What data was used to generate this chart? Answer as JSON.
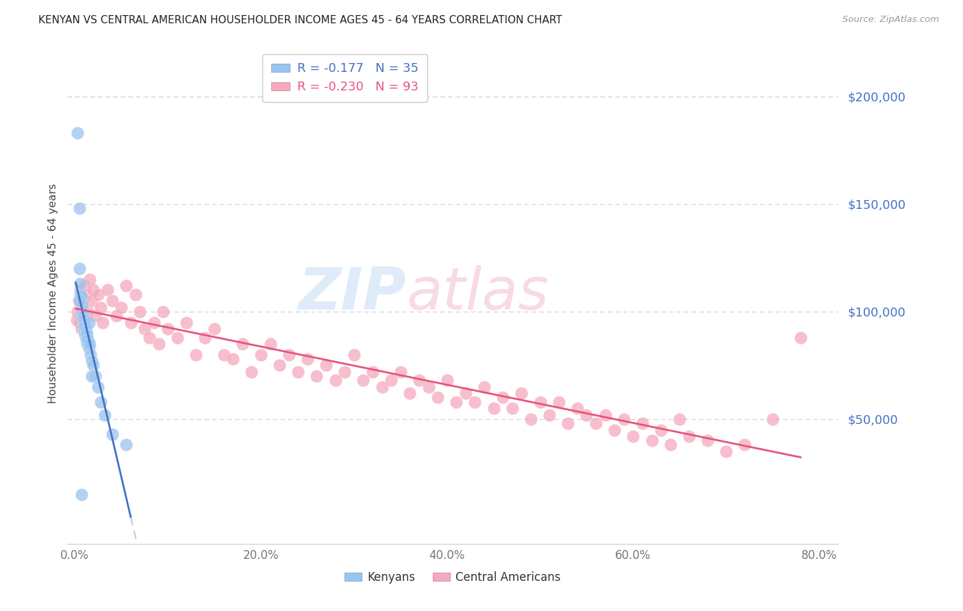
{
  "title": "KENYAN VS CENTRAL AMERICAN HOUSEHOLDER INCOME AGES 45 - 64 YEARS CORRELATION CHART",
  "source": "Source: ZipAtlas.com",
  "ylabel": "Householder Income Ages 45 - 64 years",
  "kenyan_color": "#9ac4f0",
  "ca_color": "#f5a8be",
  "kenyan_line_color": "#4472c4",
  "ca_line_color": "#e8547a",
  "dashed_line_color": "#b8cce4",
  "grid_color": "#cccccc",
  "title_color": "#222222",
  "source_color": "#999999",
  "ytick_color": "#4472c4",
  "xtick_color": "#777777",
  "xlim": [
    -0.008,
    0.82
  ],
  "ylim": [
    -8000,
    225000
  ],
  "ytick_vals": [
    50000,
    100000,
    150000,
    200000
  ],
  "ytick_labels": [
    "$50,000",
    "$100,000",
    "$150,000",
    "$200,000"
  ],
  "xtick_vals": [
    0.0,
    0.2,
    0.4,
    0.6,
    0.8
  ],
  "xtick_labels": [
    "0.0%",
    "20.0%",
    "40.0%",
    "60.0%",
    "80.0%"
  ],
  "kenyan_R": -0.177,
  "kenyan_N": 35,
  "ca_R": -0.23,
  "ca_N": 93,
  "kenyan_x": [
    0.003,
    0.005,
    0.005,
    0.006,
    0.006,
    0.007,
    0.007,
    0.008,
    0.008,
    0.009,
    0.009,
    0.01,
    0.01,
    0.011,
    0.011,
    0.012,
    0.012,
    0.013,
    0.013,
    0.014,
    0.015,
    0.015,
    0.016,
    0.017,
    0.018,
    0.02,
    0.022,
    0.025,
    0.028,
    0.032,
    0.005,
    0.018,
    0.04,
    0.055,
    0.007
  ],
  "kenyan_y": [
    183000,
    148000,
    120000,
    113000,
    108000,
    107000,
    100000,
    103000,
    97000,
    98000,
    94000,
    96000,
    91000,
    93000,
    89000,
    91000,
    87000,
    89000,
    85000,
    87000,
    95000,
    83000,
    85000,
    80000,
    77000,
    75000,
    70000,
    65000,
    58000,
    52000,
    105000,
    70000,
    43000,
    38000,
    15000
  ],
  "ca_x": [
    0.002,
    0.003,
    0.004,
    0.005,
    0.006,
    0.007,
    0.008,
    0.009,
    0.01,
    0.012,
    0.014,
    0.016,
    0.018,
    0.02,
    0.022,
    0.025,
    0.028,
    0.03,
    0.035,
    0.04,
    0.045,
    0.05,
    0.055,
    0.06,
    0.065,
    0.07,
    0.075,
    0.08,
    0.085,
    0.09,
    0.095,
    0.1,
    0.11,
    0.12,
    0.13,
    0.14,
    0.15,
    0.16,
    0.17,
    0.18,
    0.19,
    0.2,
    0.21,
    0.22,
    0.23,
    0.24,
    0.25,
    0.26,
    0.27,
    0.28,
    0.29,
    0.3,
    0.31,
    0.32,
    0.33,
    0.34,
    0.35,
    0.36,
    0.37,
    0.38,
    0.39,
    0.4,
    0.41,
    0.42,
    0.43,
    0.44,
    0.45,
    0.46,
    0.47,
    0.48,
    0.49,
    0.5,
    0.51,
    0.52,
    0.53,
    0.54,
    0.55,
    0.56,
    0.57,
    0.58,
    0.59,
    0.6,
    0.61,
    0.62,
    0.63,
    0.64,
    0.65,
    0.66,
    0.68,
    0.7,
    0.72,
    0.75,
    0.78
  ],
  "ca_y": [
    96000,
    100000,
    105000,
    95000,
    110000,
    92000,
    105000,
    98000,
    112000,
    108000,
    100000,
    115000,
    105000,
    110000,
    98000,
    108000,
    102000,
    95000,
    110000,
    105000,
    98000,
    102000,
    112000,
    95000,
    108000,
    100000,
    92000,
    88000,
    95000,
    85000,
    100000,
    92000,
    88000,
    95000,
    80000,
    88000,
    92000,
    80000,
    78000,
    85000,
    72000,
    80000,
    85000,
    75000,
    80000,
    72000,
    78000,
    70000,
    75000,
    68000,
    72000,
    80000,
    68000,
    72000,
    65000,
    68000,
    72000,
    62000,
    68000,
    65000,
    60000,
    68000,
    58000,
    62000,
    58000,
    65000,
    55000,
    60000,
    55000,
    62000,
    50000,
    58000,
    52000,
    58000,
    48000,
    55000,
    52000,
    48000,
    52000,
    45000,
    50000,
    42000,
    48000,
    40000,
    45000,
    38000,
    50000,
    42000,
    40000,
    35000,
    38000,
    50000,
    88000
  ]
}
